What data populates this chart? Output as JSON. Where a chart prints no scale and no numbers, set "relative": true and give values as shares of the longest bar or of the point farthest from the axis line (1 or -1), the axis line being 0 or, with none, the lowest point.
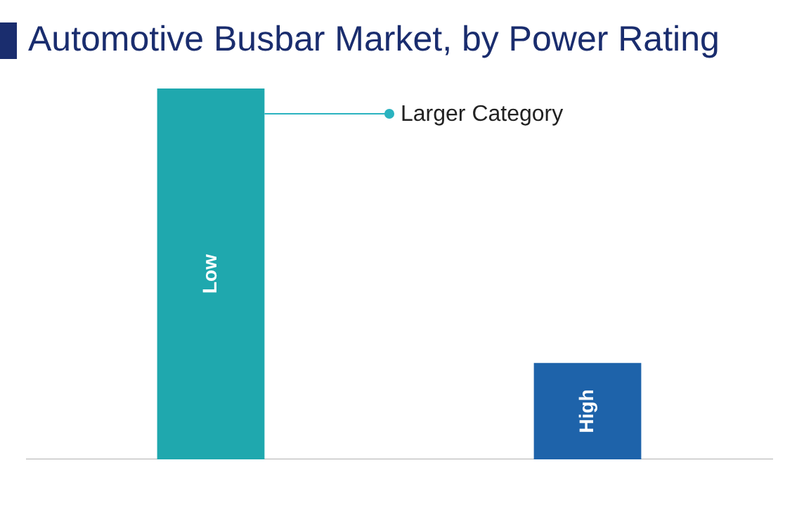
{
  "chart_data": {
    "type": "bar",
    "title": "Automotive Busbar Market, by Power Rating",
    "relative": true,
    "categories": [
      "Low",
      "High"
    ],
    "values": [
      1,
      0.26
    ],
    "colors": [
      "#1fa8ae",
      "#1e63aa"
    ],
    "annotations": [
      "Larger Category"
    ]
  }
}
